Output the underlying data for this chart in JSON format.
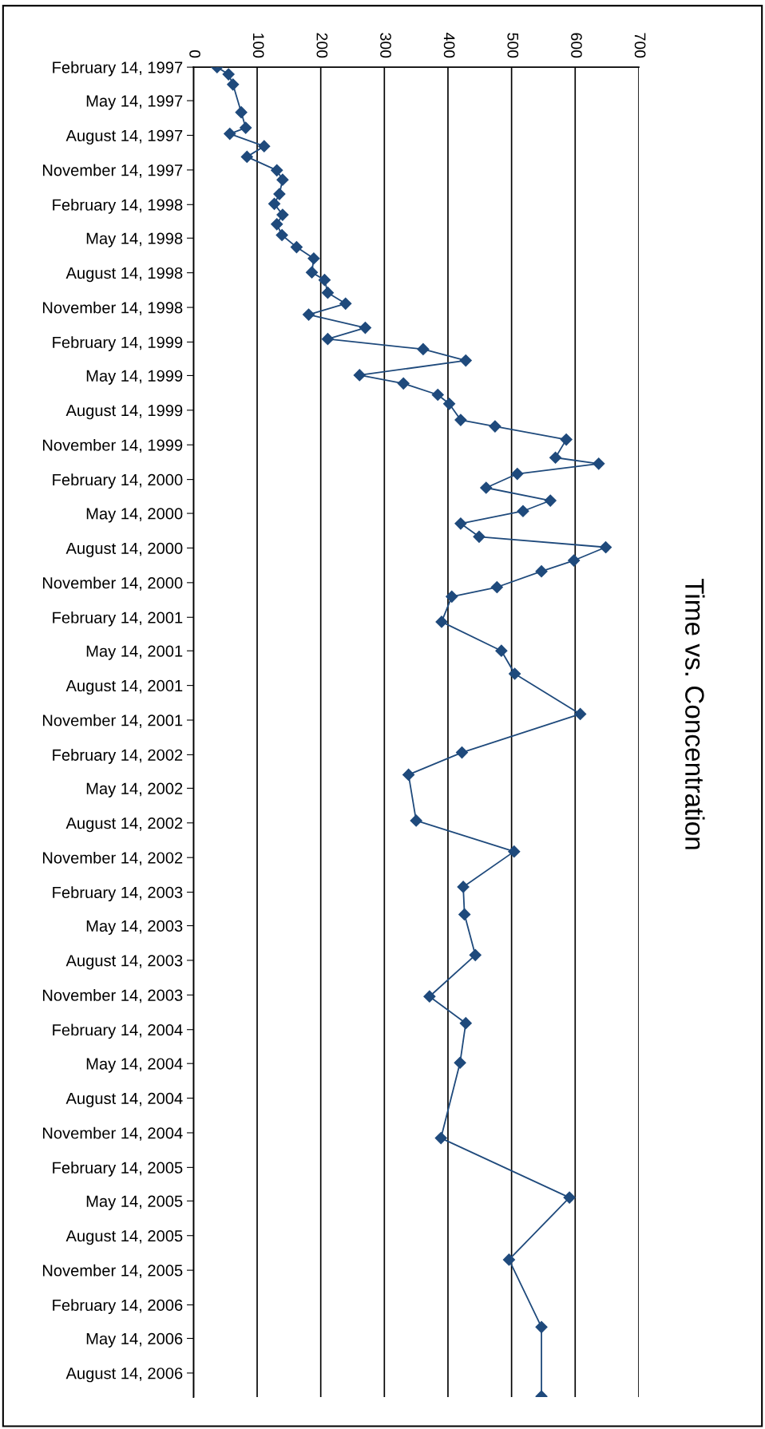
{
  "chart_data": {
    "type": "line",
    "title": "Time vs. Concentration",
    "orientation": "horizontal",
    "x": [
      "1997-02-14",
      "1997-03-05",
      "1997-04-01",
      "1997-06-14",
      "1997-07-25",
      "1997-08-10",
      "1997-09-12",
      "1997-10-10",
      "1997-11-15",
      "1997-12-10",
      "1998-01-17",
      "1998-02-12",
      "1998-03-13",
      "1998-04-07",
      "1998-05-06",
      "1998-06-07",
      "1998-07-07",
      "1998-08-13",
      "1998-09-02",
      "1998-10-06",
      "1998-11-04",
      "1998-12-03",
      "1999-01-07",
      "1999-02-06",
      "1999-03-05",
      "1999-04-04",
      "1999-05-13",
      "1999-06-04",
      "1999-07-04",
      "1999-07-28",
      "1999-09-09",
      "1999-09-26",
      "1999-10-31",
      "1999-12-18",
      "2000-01-03",
      "2000-01-30",
      "2000-03-07",
      "2000-04-10",
      "2000-05-08",
      "2000-06-10",
      "2000-07-15",
      "2000-08-12",
      "2000-09-16",
      "2000-10-15",
      "2000-11-26",
      "2000-12-21",
      "2001-02-26",
      "2001-05-14",
      "2001-07-14",
      "2001-10-29",
      "2002-02-08",
      "2002-04-08",
      "2002-08-08",
      "2002-10-29",
      "2003-01-31",
      "2003-04-14",
      "2003-07-31",
      "2003-11-18",
      "2004-01-28",
      "2004-05-12",
      "2004-11-28",
      "2005-05-05",
      "2005-10-17",
      "2006-04-14",
      "2006-10-15"
    ],
    "series": [
      {
        "color": "#1f4a7c",
        "values": [
          37,
          55,
          62,
          75,
          82,
          57,
          111,
          84,
          131,
          140,
          135,
          127,
          140,
          131,
          139,
          162,
          189,
          186,
          206,
          211,
          239,
          181,
          270,
          211,
          361,
          428,
          261,
          330,
          384,
          402,
          420,
          474,
          586,
          569,
          637,
          509,
          460,
          561,
          518,
          420,
          449,
          648,
          598,
          547,
          477,
          406,
          390,
          484,
          505,
          608,
          422,
          338,
          350,
          504,
          424,
          426,
          443,
          371,
          428,
          419,
          389,
          591,
          496,
          547,
          547
        ]
      }
    ],
    "xlim": [
      0,
      700
    ],
    "xticks": [
      0,
      100,
      200,
      300,
      400,
      500,
      600,
      700
    ],
    "ylim": [
      "2006-10-17",
      "1997-02-14"
    ],
    "yticks": [
      {
        "value": "1997-02-14",
        "label": "February 14, 1997"
      },
      {
        "value": "1997-05-14",
        "label": "May 14, 1997"
      },
      {
        "value": "1997-08-14",
        "label": "August 14, 1997"
      },
      {
        "value": "1997-11-14",
        "label": "November 14, 1997"
      },
      {
        "value": "1998-02-14",
        "label": "February 14, 1998"
      },
      {
        "value": "1998-05-14",
        "label": "May 14, 1998"
      },
      {
        "value": "1998-08-14",
        "label": "August 14, 1998"
      },
      {
        "value": "1998-11-14",
        "label": "November 14, 1998"
      },
      {
        "value": "1999-02-14",
        "label": "February 14, 1999"
      },
      {
        "value": "1999-05-14",
        "label": "May 14, 1999"
      },
      {
        "value": "1999-08-14",
        "label": "August 14, 1999"
      },
      {
        "value": "1999-11-14",
        "label": "November 14, 1999"
      },
      {
        "value": "2000-02-14",
        "label": "February 14, 2000"
      },
      {
        "value": "2000-05-14",
        "label": "May 14, 2000"
      },
      {
        "value": "2000-08-14",
        "label": "August 14, 2000"
      },
      {
        "value": "2000-11-14",
        "label": "November 14, 2000"
      },
      {
        "value": "2001-02-14",
        "label": "February 14, 2001"
      },
      {
        "value": "2001-05-14",
        "label": "May 14, 2001"
      },
      {
        "value": "2001-08-14",
        "label": "August 14, 2001"
      },
      {
        "value": "2001-11-14",
        "label": "November 14, 2001"
      },
      {
        "value": "2002-02-14",
        "label": "February 14, 2002"
      },
      {
        "value": "2002-05-14",
        "label": "May 14, 2002"
      },
      {
        "value": "2002-08-14",
        "label": "August 14, 2002"
      },
      {
        "value": "2002-11-14",
        "label": "November 14, 2002"
      },
      {
        "value": "2003-02-14",
        "label": "February 14, 2003"
      },
      {
        "value": "2003-05-14",
        "label": "May 14, 2003"
      },
      {
        "value": "2003-08-14",
        "label": "August 14, 2003"
      },
      {
        "value": "2003-11-14",
        "label": "November 14, 2003"
      },
      {
        "value": "2004-02-14",
        "label": "February 14, 2004"
      },
      {
        "value": "2004-05-14",
        "label": "May 14, 2004"
      },
      {
        "value": "2004-08-14",
        "label": "August 14, 2004"
      },
      {
        "value": "2004-11-14",
        "label": "November 14, 2004"
      },
      {
        "value": "2005-02-14",
        "label": "February 14, 2005"
      },
      {
        "value": "2005-05-14",
        "label": "May 14, 2005"
      },
      {
        "value": "2005-08-14",
        "label": "August 14, 2005"
      },
      {
        "value": "2005-11-14",
        "label": "November 14, 2005"
      },
      {
        "value": "2006-02-14",
        "label": "February 14, 2006"
      },
      {
        "value": "2006-05-14",
        "label": "May 14, 2006"
      },
      {
        "value": "2006-08-14",
        "label": "August 14, 2006"
      }
    ],
    "grid": "x",
    "marker": "diamond",
    "line_style": "solid",
    "legend": false
  }
}
